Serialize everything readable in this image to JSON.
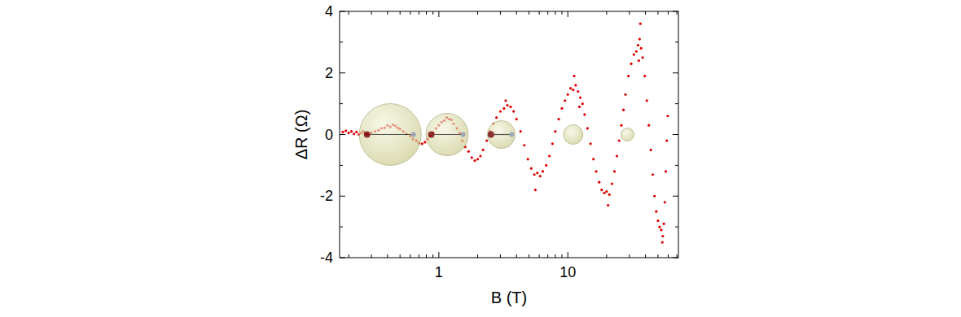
{
  "chart_data": {
    "type": "scatter",
    "x_label": "B (T)",
    "y_label": "ΔR (Ω)",
    "log": "x",
    "xlim": [
      0.17,
      72
    ],
    "ylim": [
      -4,
      4
    ],
    "xticks": [
      1,
      10
    ],
    "yticks": [
      -4,
      -2,
      0,
      2,
      4
    ],
    "series": [
      {
        "color": "#e00000",
        "marker": "dot",
        "x": [
          0.18,
          0.19,
          0.2,
          0.21,
          0.22,
          0.23,
          0.24,
          0.25,
          0.26,
          0.27,
          0.28,
          0.3,
          0.32,
          0.34,
          0.36,
          0.38,
          0.4,
          0.42,
          0.44,
          0.46,
          0.48,
          0.5,
          0.53,
          0.56,
          0.6,
          0.63,
          0.67,
          0.7,
          0.74,
          0.78,
          0.82,
          0.86,
          0.9,
          0.95,
          1.0,
          1.05,
          1.1,
          1.15,
          1.2,
          1.25,
          1.3,
          1.38,
          1.45,
          1.52,
          1.6,
          1.7,
          1.8,
          1.9,
          2.0,
          2.1,
          2.2,
          2.35,
          2.5,
          2.65,
          2.8,
          3.0,
          3.2,
          3.4,
          3.6,
          3.8,
          4.0,
          4.3,
          4.6,
          4.9,
          5.2,
          5.5,
          5.8,
          6.1,
          6.4,
          6.8,
          7.2,
          7.6,
          8.0,
          8.5,
          9.0,
          9.5,
          10.0,
          10.5,
          11.0,
          11.5,
          12.0,
          12.5,
          13.0,
          13.5,
          14.2,
          15.0,
          15.8,
          16.6,
          17.5,
          18.3,
          19.2,
          20.0,
          21.0,
          22.0,
          23.0,
          24.0,
          25.0,
          26.0,
          27.0,
          28.0,
          29.5,
          31.0,
          32.5,
          34.0,
          35.0,
          36.0,
          37.0,
          38.0,
          39.5,
          41.0,
          42.5,
          44.0,
          45.5,
          47.0,
          48.5,
          50.0,
          51.5,
          53.0,
          54.5,
          55.5,
          56.5,
          57.5,
          58.5,
          59.5,
          36.5,
          35.5,
          11.2,
          5.6,
          54.0,
          3.3,
          12.3,
          20.5
        ],
        "values": [
          0.08,
          0.12,
          0.05,
          0.1,
          0.02,
          0.08,
          0.0,
          0.05,
          0.1,
          0.03,
          0.0,
          0.06,
          0.1,
          0.14,
          0.2,
          0.22,
          0.3,
          0.25,
          0.32,
          0.28,
          0.22,
          0.18,
          0.1,
          0.02,
          -0.05,
          -0.15,
          -0.2,
          -0.28,
          -0.3,
          -0.25,
          -0.15,
          -0.05,
          0.05,
          0.2,
          0.3,
          0.4,
          0.45,
          0.55,
          0.5,
          0.48,
          0.35,
          0.2,
          0.05,
          -0.2,
          -0.4,
          -0.55,
          -0.75,
          -0.85,
          -0.8,
          -0.7,
          -0.5,
          -0.2,
          0.1,
          0.35,
          0.55,
          0.75,
          0.85,
          0.95,
          0.9,
          0.75,
          0.5,
          0.1,
          -0.35,
          -0.8,
          -1.1,
          -1.3,
          -1.25,
          -1.35,
          -1.2,
          -1.0,
          -0.7,
          -0.3,
          0.1,
          0.5,
          0.85,
          1.1,
          1.3,
          1.5,
          1.45,
          1.6,
          1.4,
          1.2,
          1.0,
          0.65,
          0.2,
          -0.3,
          -0.8,
          -1.2,
          -1.55,
          -1.8,
          -1.9,
          -1.85,
          -1.95,
          -1.6,
          -1.2,
          -0.7,
          -0.2,
          0.3,
          0.8,
          1.3,
          1.9,
          2.3,
          2.6,
          2.7,
          2.9,
          3.1,
          2.8,
          2.5,
          1.9,
          1.1,
          0.3,
          -0.5,
          -1.3,
          -2.0,
          -2.5,
          -2.8,
          -3.0,
          -3.1,
          -3.3,
          -2.9,
          -2.2,
          -1.2,
          -0.2,
          0.6,
          3.6,
          2.4,
          1.9,
          -1.8,
          -3.5,
          1.1,
          0.9,
          -2.3
        ]
      },
      {
        "type": "bubble",
        "color": "#c9c98a",
        "x": [
          0.42,
          1.16,
          3.05,
          11,
          29
        ],
        "values": [
          0,
          0,
          0,
          0,
          0
        ],
        "size": [
          38,
          26,
          17,
          12,
          8
        ]
      }
    ]
  }
}
